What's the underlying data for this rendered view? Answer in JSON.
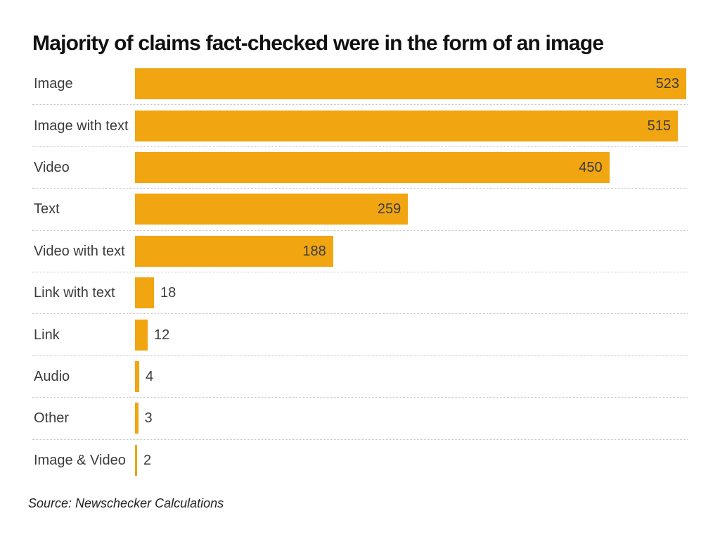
{
  "page": {
    "title": "Majority of claims fact-checked were in the form of an image",
    "source_note": "Source: Newschecker Calculations"
  },
  "chart_data": {
    "type": "bar",
    "orientation": "horizontal",
    "title": "Majority of claims fact-checked were in the form of an image",
    "categories": [
      "Image",
      "Image with text",
      "Video",
      "Text",
      "Video with text",
      "Link with text",
      "Link",
      "Audio",
      "Other",
      "Image & Video"
    ],
    "values": [
      523,
      515,
      450,
      259,
      188,
      18,
      12,
      4,
      3,
      2
    ],
    "xlim": [
      0,
      523
    ],
    "grid": false,
    "legend": false,
    "value_label_position": "bar end (inside for large bars, outside right for small bars)",
    "row_separator": "light dotted line between rows",
    "source": "Source: Newschecker Calculations"
  },
  "colors": {
    "background": "#FFFFFF",
    "bar": "#F0A511",
    "title_text": "#111111",
    "label_text": "#3B3B3B",
    "value_text": "#3C3C3C",
    "separator": "#C4C4C4"
  }
}
